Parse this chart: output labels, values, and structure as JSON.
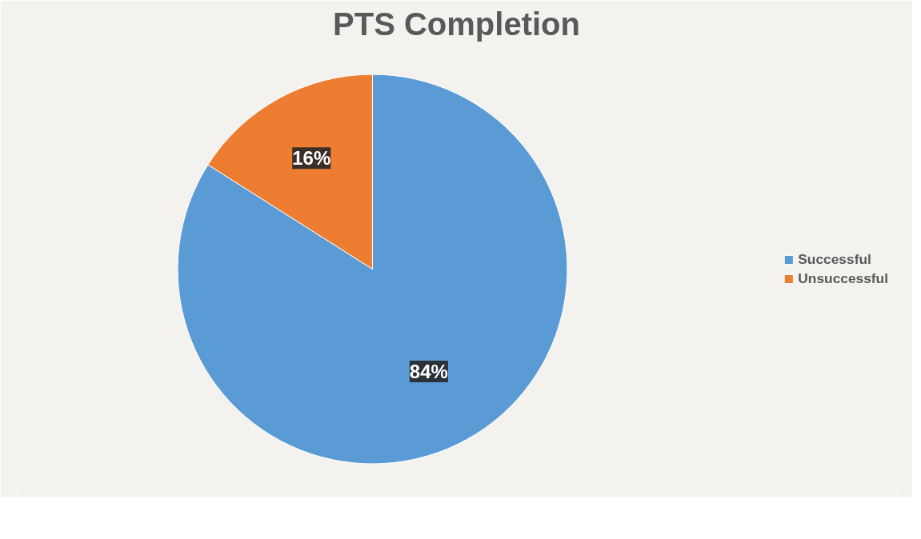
{
  "chart_data": {
    "type": "pie",
    "title": "PTS Completion",
    "categories": [
      "Successful",
      "Unsuccessful"
    ],
    "values": [
      84,
      16
    ],
    "colors": [
      "#5b9bd5",
      "#ed7d31"
    ],
    "value_labels": [
      "84%",
      "16%"
    ],
    "legend": "right"
  }
}
